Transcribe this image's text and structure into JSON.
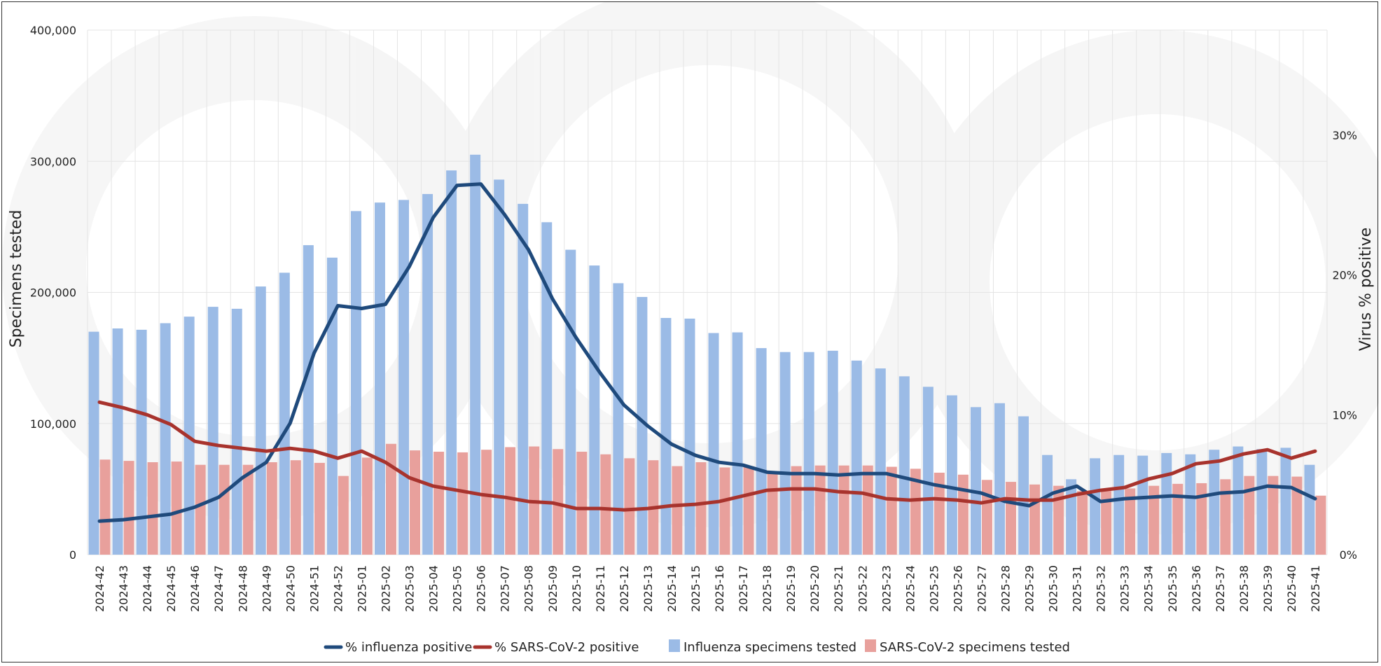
{
  "chart_data": {
    "type": "bar",
    "title": "",
    "ylabel": "Specimens tested",
    "y2label": "Virus % positive",
    "ylim": [
      0,
      400000
    ],
    "y2lim": [
      0,
      0.375
    ],
    "y_ticks": [
      "0",
      "100,000",
      "200,000",
      "300,000",
      "400,000"
    ],
    "y_tick_values": [
      0,
      100000,
      200000,
      300000,
      400000
    ],
    "y2_ticks": [
      "0%",
      "10%",
      "20%",
      "30%"
    ],
    "y2_tick_values": [
      0,
      0.1,
      0.2,
      0.3
    ],
    "legend_position": "bottom",
    "categories": [
      "2024-42",
      "2024-43",
      "2024-44",
      "2024-45",
      "2024-46",
      "2024-47",
      "2024-48",
      "2024-49",
      "2024-50",
      "2024-51",
      "2024-52",
      "2025-01",
      "2025-02",
      "2025-03",
      "2025-04",
      "2025-05",
      "2025-06",
      "2025-07",
      "2025-08",
      "2025-09",
      "2025-10",
      "2025-11",
      "2025-12",
      "2025-13",
      "2025-14",
      "2025-15",
      "2025-16",
      "2025-17",
      "2025-18",
      "2025-19",
      "2025-20",
      "2025-21",
      "2025-22",
      "2025-23",
      "2025-24",
      "2025-25",
      "2025-26",
      "2025-27",
      "2025-28",
      "2025-29",
      "2025-30",
      "2025-31",
      "2025-32",
      "2025-33",
      "2025-34",
      "2025-35",
      "2025-36",
      "2025-37",
      "2025-38",
      "2025-39",
      "2025-40",
      "2025-41"
    ],
    "bars": [
      {
        "name": "Influenza specimens tested",
        "color": "#9bbbe6",
        "values": [
          170000,
          172500,
          171500,
          176500,
          181500,
          189000,
          187500,
          204500,
          215000,
          236000,
          226500,
          262000,
          268500,
          270500,
          275000,
          293000,
          305000,
          286000,
          267500,
          253500,
          232500,
          220500,
          207000,
          196500,
          180500,
          180000,
          169000,
          169500,
          157500,
          154500,
          154500,
          155500,
          148000,
          142000,
          136000,
          128000,
          121500,
          112500,
          115500,
          105500,
          76000,
          57500,
          73500,
          76000,
          75500,
          77500,
          76500,
          80000,
          82500,
          80500,
          81500,
          68500
        ]
      },
      {
        "name": "SARS-CoV-2 specimens tested",
        "color": "#e8a09c",
        "values": [
          72500,
          71500,
          70500,
          71000,
          68500,
          68500,
          68500,
          70500,
          72000,
          70000,
          60000,
          74000,
          84500,
          79500,
          78500,
          78000,
          80000,
          82000,
          82500,
          80500,
          78500,
          76500,
          73500,
          72000,
          67500,
          70500,
          66500,
          67500,
          62500,
          67500,
          68000,
          68000,
          68000,
          67000,
          65500,
          62500,
          61000,
          57000,
          55500,
          53500,
          52500,
          48500,
          48500,
          50500,
          52500,
          54000,
          54500,
          57500,
          60000,
          60000,
          59500,
          45000
        ]
      }
    ],
    "lines": [
      {
        "name": "% influenza positive",
        "color": "#1f4a7c",
        "values": [
          0.024,
          0.025,
          0.027,
          0.029,
          0.034,
          0.041,
          0.055,
          0.066,
          0.094,
          0.144,
          0.178,
          0.176,
          0.179,
          0.206,
          0.241,
          0.264,
          0.265,
          0.243,
          0.218,
          0.183,
          0.155,
          0.13,
          0.107,
          0.092,
          0.079,
          0.071,
          0.066,
          0.064,
          0.059,
          0.058,
          0.058,
          0.057,
          0.058,
          0.058,
          0.054,
          0.05,
          0.047,
          0.044,
          0.038,
          0.035,
          0.044,
          0.049,
          0.038,
          0.04,
          0.041,
          0.042,
          0.041,
          0.044,
          0.045,
          0.049,
          0.048,
          0.04
        ]
      },
      {
        "name": "% SARS-CoV-2 positive",
        "color": "#a8332d",
        "values": [
          0.109,
          0.105,
          0.1,
          0.093,
          0.081,
          0.078,
          0.076,
          0.074,
          0.076,
          0.074,
          0.069,
          0.074,
          0.066,
          0.055,
          0.049,
          0.046,
          0.043,
          0.041,
          0.038,
          0.037,
          0.033,
          0.033,
          0.032,
          0.033,
          0.035,
          0.036,
          0.038,
          0.042,
          0.046,
          0.047,
          0.047,
          0.045,
          0.044,
          0.04,
          0.039,
          0.04,
          0.039,
          0.037,
          0.04,
          0.039,
          0.039,
          0.043,
          0.046,
          0.048,
          0.054,
          0.058,
          0.065,
          0.067,
          0.072,
          0.075,
          0.069,
          0.074
        ]
      }
    ]
  }
}
